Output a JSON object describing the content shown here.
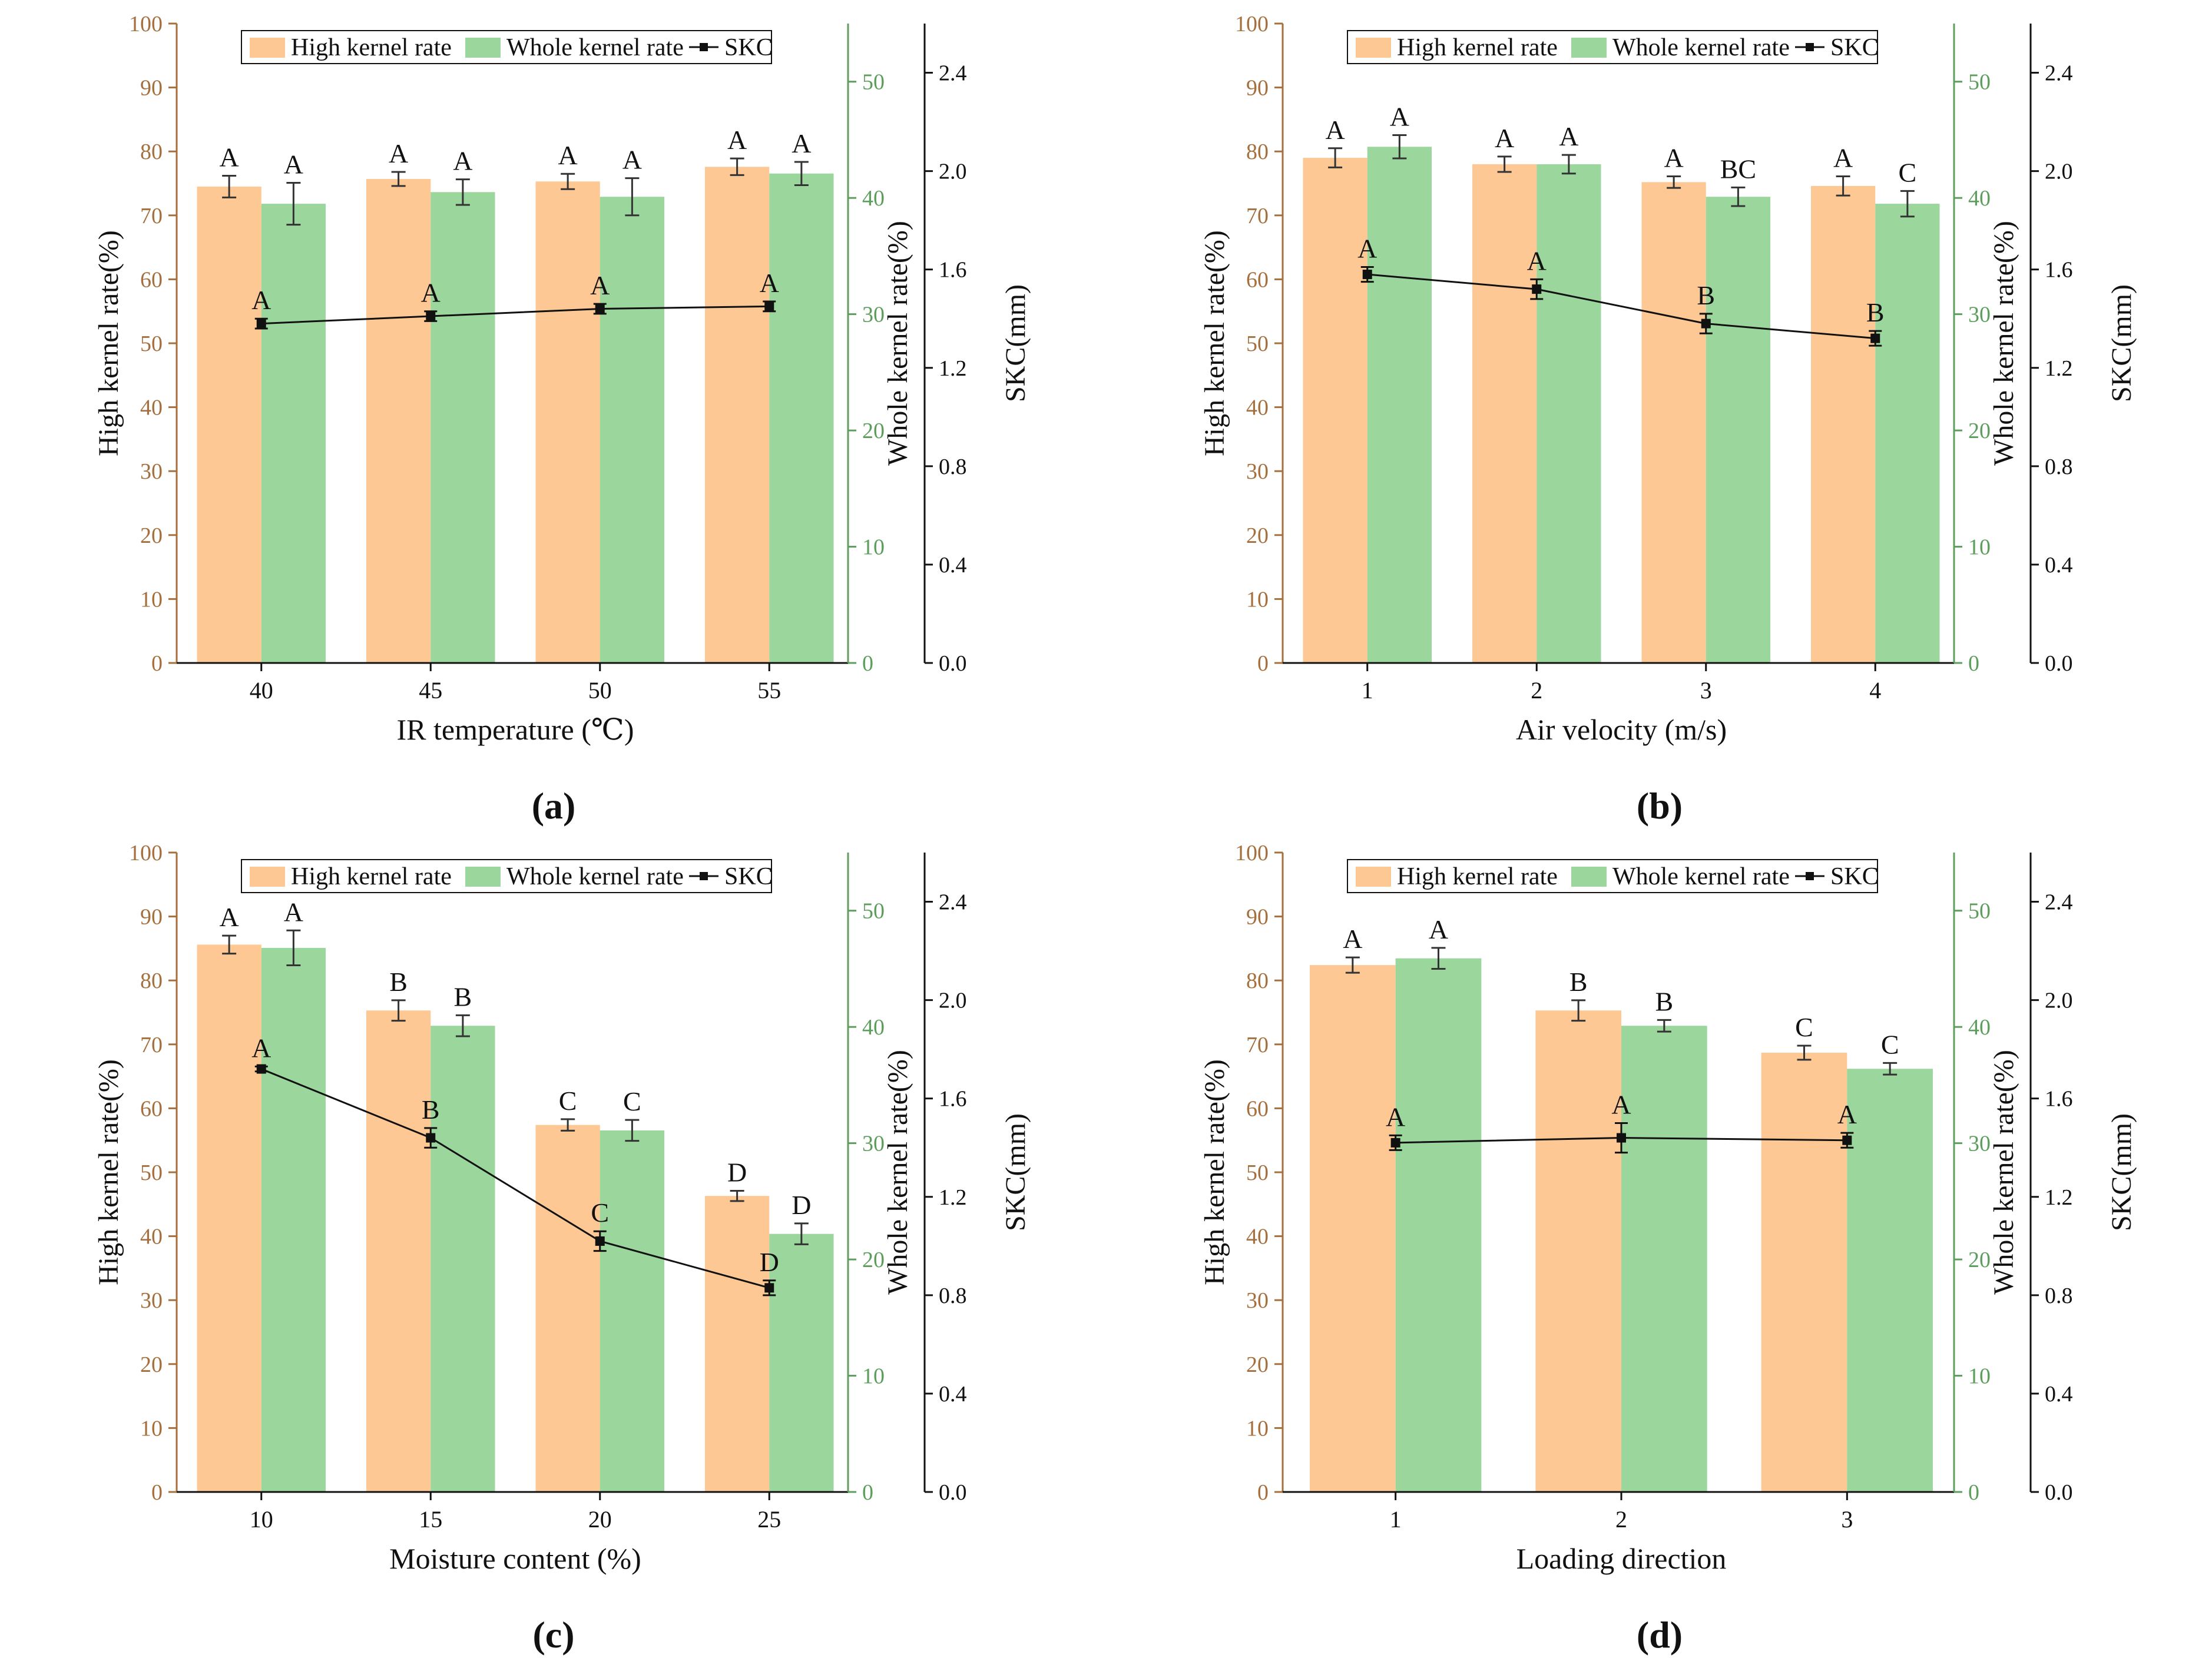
{
  "colors": {
    "high_bar": "#fdc893",
    "whole_bar": "#9bd69d",
    "left_axis": "#a5703e",
    "mid_axis": "#5d9e5d",
    "right_axis": "#111111",
    "line": "#111111"
  },
  "chart_data": [
    {
      "type": "bar",
      "panel_label": "(a)",
      "xlabel": "IR temperature (℃)",
      "categories": [
        "40",
        "45",
        "50",
        "55"
      ],
      "legend": [
        "High kernel rate",
        "Whole kernel rate",
        "SKC"
      ],
      "axes": {
        "left": {
          "label": "High kernel rate(%)",
          "lim": [
            0,
            100
          ],
          "ticks": [
            "0",
            "10",
            "20",
            "30",
            "40",
            "50",
            "60",
            "70",
            "80",
            "90",
            "100"
          ]
        },
        "mid": {
          "label": "Whole kernel rate(%)",
          "lim": [
            0,
            55
          ],
          "ticks": [
            "0",
            "10",
            "20",
            "30",
            "40",
            "50"
          ]
        },
        "right": {
          "label": "SKC(mm)",
          "lim": [
            0,
            2.6
          ],
          "ticks": [
            "0.0",
            "0.4",
            "0.8",
            "1.2",
            "1.6",
            "2.0",
            "2.4"
          ]
        }
      },
      "series": [
        {
          "name": "High kernel rate",
          "axis": "left",
          "values": [
            74.5,
            75.7,
            75.3,
            77.6
          ],
          "errors": [
            1.7,
            1.1,
            1.2,
            1.3
          ],
          "letters": [
            "A",
            "A",
            "A",
            "A"
          ]
        },
        {
          "name": "Whole kernel rate",
          "axis": "mid",
          "values": [
            39.5,
            40.5,
            40.1,
            42.1
          ],
          "errors": [
            1.8,
            1.1,
            1.6,
            1.0
          ],
          "letters": [
            "A",
            "A",
            "A",
            "A"
          ]
        },
        {
          "name": "SKC",
          "axis": "right",
          "values": [
            1.38,
            1.41,
            1.44,
            1.45
          ],
          "errors": [
            0.02,
            0.02,
            0.02,
            0.02
          ],
          "letters": [
            "A",
            "A",
            "A",
            "A"
          ]
        }
      ]
    },
    {
      "type": "bar",
      "panel_label": "(b)",
      "xlabel": "Air velocity (m/s)",
      "categories": [
        "1",
        "2",
        "3",
        "4"
      ],
      "legend": [
        "High kernel rate",
        "Whole kernel rate",
        "SKC"
      ],
      "axes": {
        "left": {
          "label": "High kernel rate(%)",
          "lim": [
            0,
            100
          ],
          "ticks": [
            "0",
            "10",
            "20",
            "30",
            "40",
            "50",
            "60",
            "70",
            "80",
            "90",
            "100"
          ]
        },
        "mid": {
          "label": "Whole kernel rate(%)",
          "lim": [
            0,
            55
          ],
          "ticks": [
            "0",
            "10",
            "20",
            "30",
            "40",
            "50"
          ]
        },
        "right": {
          "label": "SKC(mm)",
          "lim": [
            0,
            2.6
          ],
          "ticks": [
            "0.0",
            "0.4",
            "0.8",
            "1.2",
            "1.6",
            "2.0",
            "2.4"
          ]
        }
      },
      "series": [
        {
          "name": "High kernel rate",
          "axis": "left",
          "values": [
            79.0,
            78.0,
            75.2,
            74.6
          ],
          "errors": [
            1.5,
            1.2,
            0.9,
            1.5
          ],
          "letters": [
            "A",
            "A",
            "A",
            "A"
          ]
        },
        {
          "name": "Whole kernel rate",
          "axis": "mid",
          "values": [
            44.4,
            42.9,
            40.1,
            39.5
          ],
          "errors": [
            1.0,
            0.8,
            0.8,
            1.1
          ],
          "letters": [
            "A",
            "A",
            "BC",
            "C"
          ]
        },
        {
          "name": "SKC",
          "axis": "right",
          "values": [
            1.58,
            1.52,
            1.38,
            1.32
          ],
          "errors": [
            0.03,
            0.04,
            0.04,
            0.03
          ],
          "letters": [
            "A",
            "A",
            "B",
            "B"
          ]
        }
      ]
    },
    {
      "type": "bar",
      "panel_label": "(c)",
      "xlabel": "Moisture content (%)",
      "categories": [
        "10",
        "15",
        "20",
        "25"
      ],
      "legend": [
        "High kernel rate",
        "Whole kernel rate",
        "SKC"
      ],
      "axes": {
        "left": {
          "label": "High kernel rate(%)",
          "lim": [
            0,
            100
          ],
          "ticks": [
            "0",
            "10",
            "20",
            "30",
            "40",
            "50",
            "60",
            "70",
            "80",
            "90",
            "100"
          ]
        },
        "mid": {
          "label": "Whole kernel rate(%)",
          "lim": [
            0,
            55
          ],
          "ticks": [
            "0",
            "10",
            "20",
            "30",
            "40",
            "50"
          ]
        },
        "right": {
          "label": "SKC(mm)",
          "lim": [
            0,
            2.6
          ],
          "ticks": [
            "0.0",
            "0.4",
            "0.8",
            "1.2",
            "1.6",
            "2.0",
            "2.4"
          ]
        }
      },
      "series": [
        {
          "name": "High kernel rate",
          "axis": "left",
          "values": [
            85.6,
            75.3,
            57.4,
            46.3
          ],
          "errors": [
            1.4,
            1.6,
            0.9,
            0.8
          ],
          "letters": [
            "A",
            "B",
            "C",
            "D"
          ]
        },
        {
          "name": "Whole kernel rate",
          "axis": "mid",
          "values": [
            46.8,
            40.1,
            31.1,
            22.2
          ],
          "errors": [
            1.5,
            0.9,
            0.9,
            0.9
          ],
          "letters": [
            "A",
            "B",
            "C",
            "D"
          ]
        },
        {
          "name": "SKC",
          "axis": "right",
          "values": [
            1.72,
            1.44,
            1.02,
            0.83
          ],
          "errors": [
            0.01,
            0.04,
            0.04,
            0.03
          ],
          "letters": [
            "A",
            "B",
            "C",
            "D"
          ]
        }
      ]
    },
    {
      "type": "bar",
      "panel_label": "(d)",
      "xlabel": "Loading direction",
      "categories": [
        "1",
        "2",
        "3"
      ],
      "legend": [
        "High kernel rate",
        "Whole kernel rate",
        "SKC"
      ],
      "axes": {
        "left": {
          "label": "High kernel rate(%)",
          "lim": [
            0,
            100
          ],
          "ticks": [
            "0",
            "10",
            "20",
            "30",
            "40",
            "50",
            "60",
            "70",
            "80",
            "90",
            "100"
          ]
        },
        "mid": {
          "label": "Whole kernel rate(%)",
          "lim": [
            0,
            55
          ],
          "ticks": [
            "0",
            "10",
            "20",
            "30",
            "40",
            "50"
          ]
        },
        "right": {
          "label": "SKC(mm)",
          "lim": [
            0,
            2.6
          ],
          "ticks": [
            "0.0",
            "0.4",
            "0.8",
            "1.2",
            "1.6",
            "2.0",
            "2.4"
          ]
        }
      },
      "series": [
        {
          "name": "High kernel rate",
          "axis": "left",
          "values": [
            82.4,
            75.3,
            68.7
          ],
          "errors": [
            1.2,
            1.6,
            1.1
          ],
          "letters": [
            "A",
            "B",
            "C"
          ]
        },
        {
          "name": "Whole kernel rate",
          "axis": "mid",
          "values": [
            45.9,
            40.1,
            36.4
          ],
          "errors": [
            0.9,
            0.5,
            0.5
          ],
          "letters": [
            "A",
            "B",
            "C"
          ]
        },
        {
          "name": "SKC",
          "axis": "right",
          "values": [
            1.42,
            1.44,
            1.43
          ],
          "errors": [
            0.03,
            0.06,
            0.03
          ],
          "letters": [
            "A",
            "A",
            "A"
          ]
        }
      ]
    }
  ]
}
